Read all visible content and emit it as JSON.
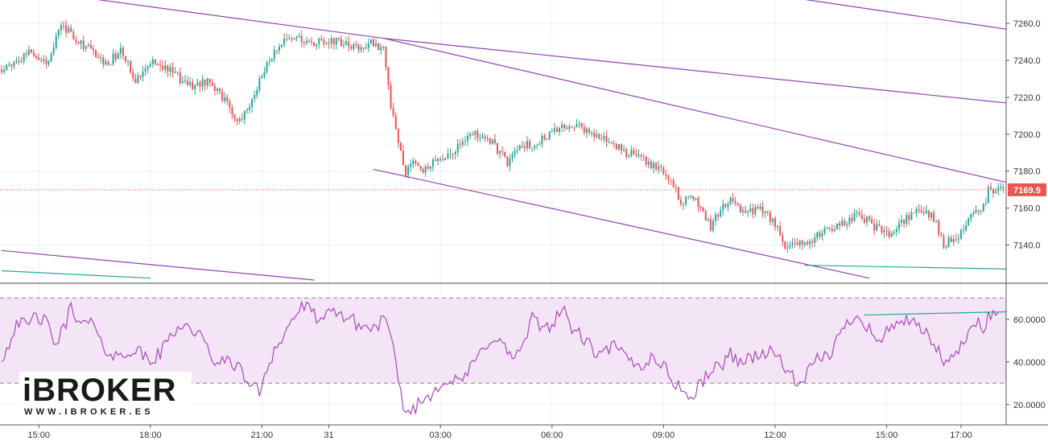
{
  "chart_data": {
    "type": "candlestick",
    "price_pane": {
      "y_axis_ticks": [
        "7260.0",
        "7240.0",
        "7220.0",
        "7200.0",
        "7180.0",
        "7160.0",
        "7140.0"
      ],
      "ylim": [
        7121,
        7271
      ],
      "last_price_label": "7169.9",
      "last_price": 7169.9,
      "anchors": [
        [
          0,
          7235
        ],
        [
          6,
          7240
        ],
        [
          12,
          7246
        ],
        [
          18,
          7238
        ],
        [
          24,
          7260
        ],
        [
          30,
          7252
        ],
        [
          36,
          7245
        ],
        [
          42,
          7238
        ],
        [
          48,
          7245
        ],
        [
          54,
          7230
        ],
        [
          60,
          7240
        ],
        [
          66,
          7236
        ],
        [
          72,
          7230
        ],
        [
          78,
          7226
        ],
        [
          84,
          7230
        ],
        [
          90,
          7218
        ],
        [
          96,
          7206
        ],
        [
          102,
          7222
        ],
        [
          108,
          7240
        ],
        [
          114,
          7250
        ],
        [
          120,
          7252
        ],
        [
          126,
          7249
        ],
        [
          132,
          7251
        ],
        [
          138,
          7249
        ],
        [
          144,
          7246
        ],
        [
          150,
          7250
        ],
        [
          154,
          7246
        ],
        [
          157,
          7215
        ],
        [
          160,
          7195
        ],
        [
          163,
          7180
        ],
        [
          166,
          7185
        ],
        [
          170,
          7180
        ],
        [
          174,
          7186
        ],
        [
          180,
          7188
        ],
        [
          186,
          7197
        ],
        [
          192,
          7200
        ],
        [
          198,
          7195
        ],
        [
          204,
          7185
        ],
        [
          210,
          7193
        ],
        [
          216,
          7196
        ],
        [
          222,
          7200
        ],
        [
          228,
          7205
        ],
        [
          234,
          7204
        ],
        [
          240,
          7199
        ],
        [
          246,
          7195
        ],
        [
          252,
          7190
        ],
        [
          258,
          7188
        ],
        [
          264,
          7182
        ],
        [
          270,
          7175
        ],
        [
          274,
          7163
        ],
        [
          278,
          7166
        ],
        [
          282,
          7160
        ],
        [
          286,
          7150
        ],
        [
          290,
          7160
        ],
        [
          294,
          7163
        ],
        [
          300,
          7158
        ],
        [
          306,
          7160
        ],
        [
          312,
          7152
        ],
        [
          316,
          7138
        ],
        [
          322,
          7140
        ],
        [
          328,
          7144
        ],
        [
          334,
          7148
        ],
        [
          340,
          7153
        ],
        [
          346,
          7156
        ],
        [
          352,
          7150
        ],
        [
          358,
          7146
        ],
        [
          364,
          7153
        ],
        [
          370,
          7160
        ],
        [
          376,
          7155
        ],
        [
          380,
          7140
        ],
        [
          386,
          7145
        ],
        [
          392,
          7160
        ],
        [
          396,
          7160
        ],
        [
          398,
          7170
        ]
      ],
      "seed": 17,
      "trendlines": [
        {
          "from": [
            0,
            7280
          ],
          "to": [
            154,
            7252
          ],
          "color": "#8e44ad"
        },
        {
          "from": [
            154,
            7252
          ],
          "to": [
            405,
            7217
          ],
          "color": "#8e44ad"
        },
        {
          "from": [
            154,
            7252
          ],
          "to": [
            405,
            7174
          ],
          "color": "#8e44ad"
        },
        {
          "from": [
            238,
            7290
          ],
          "to": [
            405,
            7257
          ],
          "color": "#8e44ad"
        },
        {
          "from": [
            150,
            7181
          ],
          "to": [
            350,
            7122
          ],
          "color": "#8e44ad"
        },
        {
          "from": [
            0,
            7137
          ],
          "to": [
            126,
            7121
          ],
          "color": "#8e44ad"
        },
        {
          "from": [
            324,
            7129
          ],
          "to": [
            405,
            7127
          ],
          "color": "#26a69a"
        },
        {
          "from": [
            0,
            7126
          ],
          "to": [
            60,
            7122
          ],
          "color": "#26a69a"
        }
      ]
    },
    "rsi_pane": {
      "y_axis_ticks": [
        "60.0000",
        "40.0000",
        "20.0000"
      ],
      "ylim": [
        12,
        75
      ],
      "band": [
        30,
        70
      ],
      "anchors": [
        [
          0,
          42
        ],
        [
          3,
          48
        ],
        [
          6,
          60
        ],
        [
          10,
          56
        ],
        [
          14,
          62
        ],
        [
          18,
          58
        ],
        [
          22,
          48
        ],
        [
          26,
          58
        ],
        [
          28,
          68
        ],
        [
          32,
          56
        ],
        [
          36,
          60
        ],
        [
          40,
          48
        ],
        [
          44,
          44
        ],
        [
          48,
          42
        ],
        [
          52,
          46
        ],
        [
          56,
          44
        ],
        [
          60,
          40
        ],
        [
          64,
          44
        ],
        [
          68,
          52
        ],
        [
          72,
          58
        ],
        [
          76,
          56
        ],
        [
          80,
          52
        ],
        [
          84,
          44
        ],
        [
          88,
          38
        ],
        [
          92,
          42
        ],
        [
          96,
          36
        ],
        [
          100,
          30
        ],
        [
          104,
          26
        ],
        [
          106,
          34
        ],
        [
          108,
          40
        ],
        [
          110,
          46
        ],
        [
          114,
          52
        ],
        [
          118,
          62
        ],
        [
          122,
          66
        ],
        [
          126,
          62
        ],
        [
          130,
          60
        ],
        [
          134,
          63
        ],
        [
          138,
          62
        ],
        [
          142,
          59
        ],
        [
          146,
          56
        ],
        [
          150,
          56
        ],
        [
          154,
          60
        ],
        [
          157,
          52
        ],
        [
          160,
          30
        ],
        [
          163,
          16
        ],
        [
          166,
          18
        ],
        [
          170,
          22
        ],
        [
          174,
          26
        ],
        [
          178,
          32
        ],
        [
          182,
          30
        ],
        [
          186,
          32
        ],
        [
          190,
          38
        ],
        [
          194,
          46
        ],
        [
          198,
          52
        ],
        [
          202,
          48
        ],
        [
          206,
          42
        ],
        [
          210,
          46
        ],
        [
          214,
          60
        ],
        [
          218,
          56
        ],
        [
          222,
          58
        ],
        [
          226,
          65
        ],
        [
          230,
          56
        ],
        [
          234,
          52
        ],
        [
          238,
          46
        ],
        [
          242,
          42
        ],
        [
          246,
          48
        ],
        [
          250,
          44
        ],
        [
          254,
          40
        ],
        [
          258,
          38
        ],
        [
          262,
          42
        ],
        [
          266,
          40
        ],
        [
          270,
          32
        ],
        [
          274,
          28
        ],
        [
          278,
          22
        ],
        [
          282,
          30
        ],
        [
          286,
          36
        ],
        [
          290,
          38
        ],
        [
          294,
          44
        ],
        [
          298,
          40
        ],
        [
          302,
          42
        ],
        [
          306,
          44
        ],
        [
          310,
          44
        ],
        [
          314,
          42
        ],
        [
          318,
          34
        ],
        [
          322,
          28
        ],
        [
          326,
          36
        ],
        [
          330,
          42
        ],
        [
          334,
          44
        ],
        [
          338,
          52
        ],
        [
          342,
          60
        ],
        [
          346,
          62
        ],
        [
          350,
          56
        ],
        [
          354,
          48
        ],
        [
          358,
          56
        ],
        [
          362,
          60
        ],
        [
          366,
          58
        ],
        [
          370,
          56
        ],
        [
          374,
          52
        ],
        [
          378,
          44
        ],
        [
          382,
          38
        ],
        [
          386,
          46
        ],
        [
          390,
          52
        ],
        [
          394,
          60
        ],
        [
          396,
          56
        ],
        [
          398,
          62
        ]
      ],
      "seed": 42,
      "trendline": {
        "from": [
          348,
          62
        ],
        "to": [
          405,
          63.5
        ],
        "color": "#26a69a"
      }
    },
    "x_axis": {
      "labels": [
        {
          "text": "15:00",
          "x": 15
        },
        {
          "text": "18:00",
          "x": 60
        },
        {
          "text": "21:00",
          "x": 105
        },
        {
          "text": "31",
          "x": 132
        },
        {
          "text": "03:00",
          "x": 177
        },
        {
          "text": "06:00",
          "x": 222
        },
        {
          "text": "09:00",
          "x": 267
        },
        {
          "text": "12:00",
          "x": 312
        },
        {
          "text": "15:00",
          "x": 357
        },
        {
          "text": "17:00",
          "x": 387
        }
      ]
    },
    "colors": {
      "up": "#26a69a",
      "down": "#ef5350",
      "rsi_line": "#ab47bc",
      "rsi_band": "#f3e5f5",
      "trend": "#8e44ad",
      "last_price": "#ef5350"
    }
  },
  "logo": {
    "main": "iBROKER",
    "sub": "WWW.IBROKER.ES"
  }
}
